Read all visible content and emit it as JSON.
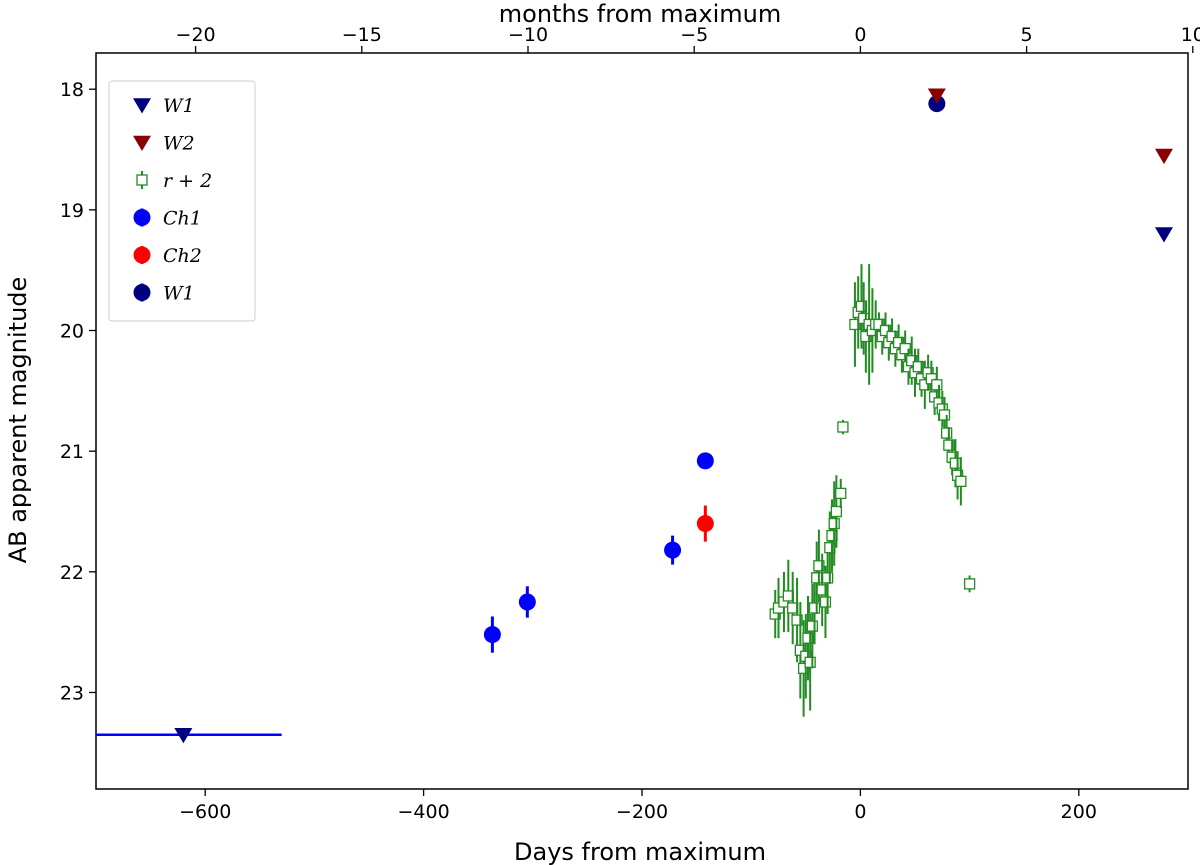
{
  "chart_data": {
    "type": "scatter",
    "xlabel": "Days from maximum",
    "ylabel": "AB apparent magnitude",
    "x2label": "months from maximum",
    "xlim": [
      -700,
      300
    ],
    "ylim": [
      23.8,
      17.7
    ],
    "y_inverted": true,
    "x2_conversion": "months = days / 30.44",
    "xticks": [
      -600,
      -400,
      -200,
      0,
      200
    ],
    "x2ticks": [
      -20,
      -15,
      -10,
      -5,
      0,
      5,
      10
    ],
    "yticks": [
      18,
      19,
      20,
      21,
      22,
      23
    ],
    "grid": false,
    "legend_position": "upper-left",
    "colors": {
      "w1_upper": "#000080",
      "w2_upper": "#8b0000",
      "r_band": "#228b22",
      "ch1": "#0000ff",
      "ch2": "#ff0000",
      "w1_detection": "#000080"
    },
    "series": [
      {
        "name": "W1",
        "marker": "triangle-down",
        "kind": "upper-limit",
        "points": [
          {
            "x": -620,
            "y": 23.35,
            "xerr_lo": 80,
            "xerr_hi": 90,
            "errcolor": "#0000ff"
          },
          {
            "x": 278,
            "y": 19.2
          }
        ]
      },
      {
        "name": "W2",
        "marker": "triangle-down",
        "kind": "upper-limit",
        "points": [
          {
            "x": 70,
            "y": 18.05
          },
          {
            "x": 278,
            "y": 18.55
          }
        ]
      },
      {
        "name": "r + 2",
        "marker": "open-square",
        "kind": "detection",
        "points": [
          {
            "x": -78,
            "y": 22.35,
            "yerr": 0.2
          },
          {
            "x": -75,
            "y": 22.3,
            "yerr": 0.25
          },
          {
            "x": -70,
            "y": 22.25,
            "yerr": 0.25
          },
          {
            "x": -66,
            "y": 22.2,
            "yerr": 0.3
          },
          {
            "x": -62,
            "y": 22.3,
            "yerr": 0.3
          },
          {
            "x": -58,
            "y": 22.4,
            "yerr": 0.35
          },
          {
            "x": -55,
            "y": 22.65,
            "yerr": 0.4
          },
          {
            "x": -52,
            "y": 22.8,
            "yerr": 0.4
          },
          {
            "x": -50,
            "y": 22.7,
            "yerr": 0.35
          },
          {
            "x": -48,
            "y": 22.55,
            "yerr": 0.35
          },
          {
            "x": -46,
            "y": 22.75,
            "yerr": 0.4
          },
          {
            "x": -44,
            "y": 22.45,
            "yerr": 0.35
          },
          {
            "x": -42,
            "y": 22.3,
            "yerr": 0.3
          },
          {
            "x": -40,
            "y": 22.05,
            "yerr": 0.3
          },
          {
            "x": -38,
            "y": 21.95,
            "yerr": 0.3
          },
          {
            "x": -35,
            "y": 22.15,
            "yerr": 0.3
          },
          {
            "x": -32,
            "y": 22.25,
            "yerr": 0.3
          },
          {
            "x": -30,
            "y": 22.05,
            "yerr": 0.3
          },
          {
            "x": -28,
            "y": 21.8,
            "yerr": 0.3
          },
          {
            "x": -26,
            "y": 21.7,
            "yerr": 0.3
          },
          {
            "x": -24,
            "y": 21.6,
            "yerr": 0.35
          },
          {
            "x": -22,
            "y": 21.5,
            "yerr": 0.3
          },
          {
            "x": -18,
            "y": 21.35,
            "yerr": 0.12
          },
          {
            "x": -16,
            "y": 20.8,
            "yerr": 0.06
          },
          {
            "x": -5,
            "y": 19.95,
            "yerr": 0.35
          },
          {
            "x": -2,
            "y": 19.85,
            "yerr": 0.3
          },
          {
            "x": 1,
            "y": 19.8,
            "yerr": 0.35
          },
          {
            "x": 3,
            "y": 19.9,
            "yerr": 0.3
          },
          {
            "x": 5,
            "y": 20.05,
            "yerr": 0.3
          },
          {
            "x": 8,
            "y": 19.95,
            "yerr": 0.5
          },
          {
            "x": 11,
            "y": 20.0,
            "yerr": 0.35
          },
          {
            "x": 14,
            "y": 19.95,
            "yerr": 0.2
          },
          {
            "x": 17,
            "y": 19.95,
            "yerr": 0.1
          },
          {
            "x": 20,
            "y": 20.05,
            "yerr": 0.15
          },
          {
            "x": 23,
            "y": 20.0,
            "yerr": 0.15
          },
          {
            "x": 26,
            "y": 20.1,
            "yerr": 0.15
          },
          {
            "x": 29,
            "y": 20.05,
            "yerr": 0.15
          },
          {
            "x": 32,
            "y": 20.15,
            "yerr": 0.15
          },
          {
            "x": 35,
            "y": 20.1,
            "yerr": 0.15
          },
          {
            "x": 38,
            "y": 20.2,
            "yerr": 0.15
          },
          {
            "x": 41,
            "y": 20.15,
            "yerr": 0.15
          },
          {
            "x": 44,
            "y": 20.3,
            "yerr": 0.15
          },
          {
            "x": 47,
            "y": 20.25,
            "yerr": 0.2
          },
          {
            "x": 50,
            "y": 20.35,
            "yerr": 0.2
          },
          {
            "x": 53,
            "y": 20.3,
            "yerr": 0.15
          },
          {
            "x": 56,
            "y": 20.4,
            "yerr": 0.15
          },
          {
            "x": 59,
            "y": 20.45,
            "yerr": 0.2
          },
          {
            "x": 62,
            "y": 20.35,
            "yerr": 0.15
          },
          {
            "x": 65,
            "y": 20.4,
            "yerr": 0.15
          },
          {
            "x": 68,
            "y": 20.55,
            "yerr": 0.15
          },
          {
            "x": 70,
            "y": 20.45,
            "yerr": 0.15
          },
          {
            "x": 72,
            "y": 20.6,
            "yerr": 0.15
          },
          {
            "x": 75,
            "y": 20.65,
            "yerr": 0.15
          },
          {
            "x": 77,
            "y": 20.7,
            "yerr": 0.15
          },
          {
            "x": 79,
            "y": 20.85,
            "yerr": 0.15
          },
          {
            "x": 81,
            "y": 20.95,
            "yerr": 0.15
          },
          {
            "x": 84,
            "y": 21.05,
            "yerr": 0.15
          },
          {
            "x": 87,
            "y": 21.1,
            "yerr": 0.2
          },
          {
            "x": 89,
            "y": 21.2,
            "yerr": 0.2
          },
          {
            "x": 92,
            "y": 21.25,
            "yerr": 0.2
          },
          {
            "x": 100,
            "y": 22.1,
            "yerr": 0.07
          }
        ]
      },
      {
        "name": "Ch1",
        "marker": "circle",
        "kind": "detection",
        "points": [
          {
            "x": -337,
            "y": 22.52,
            "yerr": 0.15
          },
          {
            "x": -305,
            "y": 22.25,
            "yerr": 0.13
          },
          {
            "x": -172,
            "y": 21.82,
            "yerr": 0.12
          },
          {
            "x": -142,
            "y": 21.08,
            "yerr": 0.05
          }
        ]
      },
      {
        "name": "Ch2",
        "marker": "circle",
        "kind": "detection",
        "points": [
          {
            "x": -142,
            "y": 21.6,
            "yerr": 0.15
          }
        ]
      },
      {
        "name": "W1",
        "marker": "circle",
        "kind": "detection",
        "points": [
          {
            "x": 70,
            "y": 18.12,
            "yerr": 0.05
          }
        ]
      }
    ]
  }
}
